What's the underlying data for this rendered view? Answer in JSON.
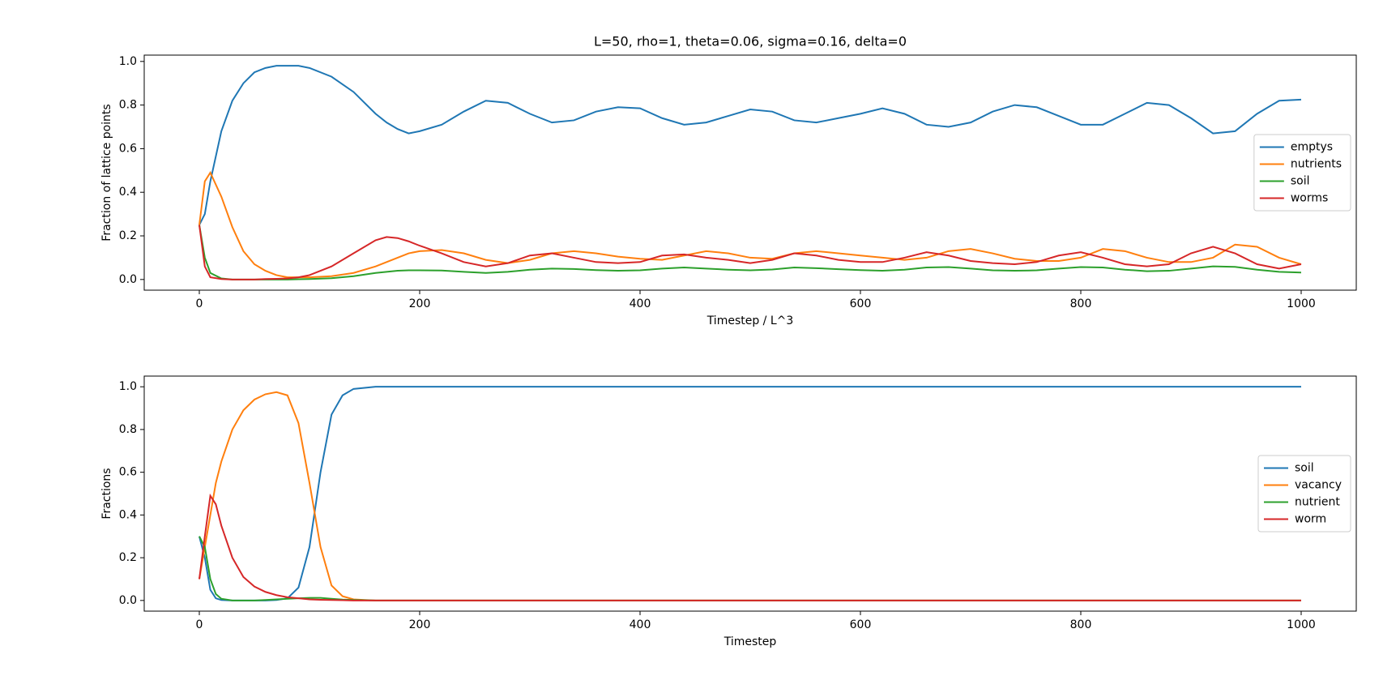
{
  "chart_data": [
    {
      "type": "line",
      "title": "L=50, rho=1, theta=0.06, sigma=0.16, delta=0",
      "x_label": "Timestep / L^3",
      "y_label": "Fraction of lattice points",
      "x": [
        0,
        5,
        10,
        20,
        30,
        40,
        50,
        60,
        70,
        80,
        90,
        100,
        120,
        140,
        160,
        170,
        180,
        190,
        200,
        220,
        240,
        260,
        280,
        300,
        320,
        340,
        360,
        380,
        400,
        420,
        440,
        460,
        480,
        500,
        520,
        540,
        560,
        580,
        600,
        620,
        640,
        660,
        680,
        700,
        720,
        740,
        760,
        780,
        800,
        820,
        840,
        860,
        880,
        900,
        920,
        940,
        960,
        980,
        1000
      ],
      "series": [
        {
          "name": "emptys",
          "color": "#1f77b4",
          "values": [
            0.25,
            0.3,
            0.45,
            0.68,
            0.82,
            0.9,
            0.95,
            0.97,
            0.98,
            0.98,
            0.98,
            0.97,
            0.93,
            0.86,
            0.76,
            0.72,
            0.69,
            0.67,
            0.68,
            0.71,
            0.77,
            0.82,
            0.81,
            0.76,
            0.72,
            0.73,
            0.77,
            0.79,
            0.785,
            0.74,
            0.71,
            0.72,
            0.75,
            0.78,
            0.77,
            0.73,
            0.72,
            0.74,
            0.76,
            0.785,
            0.76,
            0.71,
            0.7,
            0.72,
            0.77,
            0.8,
            0.79,
            0.75,
            0.71,
            0.71,
            0.76,
            0.81,
            0.8,
            0.74,
            0.67,
            0.68,
            0.76,
            0.82,
            0.825
          ]
        },
        {
          "name": "nutrients",
          "color": "#ff7f0e",
          "values": [
            0.25,
            0.45,
            0.49,
            0.38,
            0.24,
            0.13,
            0.07,
            0.04,
            0.02,
            0.01,
            0.01,
            0.01,
            0.015,
            0.03,
            0.06,
            0.08,
            0.1,
            0.12,
            0.13,
            0.135,
            0.12,
            0.09,
            0.075,
            0.09,
            0.12,
            0.13,
            0.12,
            0.105,
            0.095,
            0.09,
            0.11,
            0.13,
            0.12,
            0.1,
            0.095,
            0.12,
            0.13,
            0.12,
            0.11,
            0.1,
            0.09,
            0.1,
            0.13,
            0.14,
            0.12,
            0.095,
            0.085,
            0.085,
            0.1,
            0.14,
            0.13,
            0.1,
            0.08,
            0.08,
            0.1,
            0.16,
            0.15,
            0.1,
            0.07
          ]
        },
        {
          "name": "soil",
          "color": "#2ca02c",
          "values": [
            0.25,
            0.1,
            0.03,
            0.005,
            0,
            0,
            0,
            0,
            0,
            0,
            0.001,
            0.002,
            0.006,
            0.015,
            0.03,
            0.035,
            0.04,
            0.042,
            0.042,
            0.041,
            0.035,
            0.03,
            0.035,
            0.045,
            0.05,
            0.048,
            0.043,
            0.04,
            0.042,
            0.05,
            0.055,
            0.05,
            0.045,
            0.042,
            0.046,
            0.055,
            0.052,
            0.047,
            0.043,
            0.04,
            0.045,
            0.055,
            0.057,
            0.05,
            0.042,
            0.04,
            0.042,
            0.05,
            0.057,
            0.055,
            0.045,
            0.038,
            0.04,
            0.05,
            0.06,
            0.058,
            0.045,
            0.035,
            0.032
          ]
        },
        {
          "name": "worms",
          "color": "#d62728",
          "values": [
            0.25,
            0.06,
            0.01,
            0.002,
            0,
            0,
            0,
            0.002,
            0.003,
            0.005,
            0.01,
            0.02,
            0.06,
            0.12,
            0.18,
            0.195,
            0.19,
            0.175,
            0.155,
            0.12,
            0.08,
            0.06,
            0.075,
            0.11,
            0.12,
            0.1,
            0.08,
            0.075,
            0.08,
            0.11,
            0.115,
            0.1,
            0.09,
            0.075,
            0.09,
            0.12,
            0.11,
            0.09,
            0.08,
            0.08,
            0.1,
            0.125,
            0.11,
            0.085,
            0.075,
            0.07,
            0.08,
            0.11,
            0.125,
            0.1,
            0.07,
            0.06,
            0.07,
            0.12,
            0.15,
            0.12,
            0.07,
            0.05,
            0.07
          ]
        }
      ],
      "xlim": [
        -50,
        1050
      ],
      "xticks": [
        0,
        200,
        400,
        600,
        800,
        1000
      ],
      "ylim": [
        -0.049,
        1.029
      ],
      "yticks": [
        {
          "value": 0,
          "label": "0.0"
        },
        0.2,
        0.4,
        0.6,
        0.8,
        {
          "value": 1,
          "label": "1.0"
        }
      ],
      "legend": "center right"
    },
    {
      "type": "line",
      "x_label": "Timestep",
      "y_label": "Fractions",
      "x": [
        0,
        5,
        10,
        15,
        20,
        30,
        40,
        50,
        60,
        70,
        80,
        90,
        100,
        110,
        120,
        130,
        140,
        150,
        160,
        180,
        200,
        1000
      ],
      "series": [
        {
          "name": "soil",
          "color": "#1f77b4",
          "values": [
            0.3,
            0.2,
            0.05,
            0.01,
            0.002,
            0,
            0,
            0,
            0,
            0.002,
            0.01,
            0.06,
            0.25,
            0.6,
            0.87,
            0.96,
            0.99,
            0.995,
            1,
            1,
            1,
            1
          ]
        },
        {
          "name": "vacancy",
          "color": "#ff7f0e",
          "values": [
            0.1,
            0.25,
            0.4,
            0.55,
            0.65,
            0.8,
            0.89,
            0.94,
            0.965,
            0.975,
            0.96,
            0.83,
            0.55,
            0.25,
            0.07,
            0.02,
            0.005,
            0.002,
            0,
            0,
            0,
            0
          ]
        },
        {
          "name": "nutrient",
          "color": "#2ca02c",
          "values": [
            0.3,
            0.25,
            0.1,
            0.03,
            0.008,
            0,
            0,
            0,
            0.002,
            0.005,
            0.008,
            0.01,
            0.012,
            0.012,
            0.008,
            0.004,
            0.002,
            0.001,
            0,
            0,
            0,
            0
          ]
        },
        {
          "name": "worm",
          "color": "#d62728",
          "values": [
            0.1,
            0.3,
            0.49,
            0.45,
            0.35,
            0.2,
            0.11,
            0.065,
            0.04,
            0.025,
            0.015,
            0.01,
            0.005,
            0.003,
            0.002,
            0.001,
            0,
            0,
            0,
            0,
            0,
            0
          ]
        }
      ],
      "xlim": [
        -50,
        1050
      ],
      "xticks": [
        0,
        200,
        400,
        600,
        800,
        1000
      ],
      "ylim": [
        -0.05,
        1.05
      ],
      "yticks": [
        {
          "value": 0,
          "label": "0.0"
        },
        0.2,
        0.4,
        0.6,
        0.8,
        {
          "value": 1,
          "label": "1.0"
        }
      ],
      "legend": "center right"
    }
  ]
}
